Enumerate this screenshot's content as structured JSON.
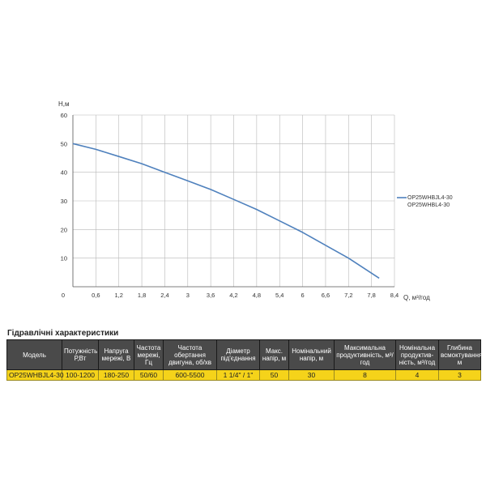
{
  "chart_data": {
    "type": "line",
    "ylabel": "H,м",
    "xlabel": "Q, м³/год",
    "xlim": [
      0,
      8.4
    ],
    "ylim": [
      0,
      60
    ],
    "x_ticks": [
      "0,6",
      "1,2",
      "1,8",
      "2,4",
      "3",
      "3,6",
      "4,2",
      "4,8",
      "5,4",
      "6",
      "6,6",
      "7,2",
      "7,8",
      "8,4"
    ],
    "x_tick_values": [
      0.6,
      1.2,
      1.8,
      2.4,
      3,
      3.6,
      4.2,
      4.8,
      5.4,
      6,
      6.6,
      7.2,
      7.8,
      8.4
    ],
    "y_ticks": [
      "10",
      "20",
      "30",
      "40",
      "50",
      "60"
    ],
    "y_tick_values": [
      10,
      20,
      30,
      40,
      50,
      60
    ],
    "origin_label": "0",
    "grid": true,
    "legend_position": "right",
    "series": [
      {
        "name": "OP25WHBJL4-30\nOP25WHBL4-30",
        "legend_lines": [
          "OP25WHBJL4-30",
          "OP25WHBL4-30"
        ],
        "color": "#4f81bd",
        "x": [
          0,
          0.6,
          1.2,
          1.8,
          2.4,
          3,
          3.6,
          4.2,
          4.8,
          5.4,
          6,
          6.6,
          7.2,
          8
        ],
        "y": [
          50,
          48,
          45.5,
          43,
          40,
          37,
          34,
          30.5,
          27,
          23,
          19,
          14.5,
          10,
          3
        ]
      }
    ]
  },
  "table": {
    "title": "Гідравлічні характеристики",
    "headers": [
      "Модель",
      "Потужність Р,Вт",
      "Напруга мережі, В",
      "Частота мережі, Гц",
      "Частота обертання двигуна, об/хв",
      "Діаметр під'єднання",
      "Макс. напір, м",
      "Номінальний напір, м",
      "Максимальна продуктивність, м³/год",
      "Номінальна продуктив-ність, м³/год",
      "Глибина всмоктування, м"
    ],
    "rows": [
      [
        "OP25WHBJL4-30",
        "100-1200",
        "180-250",
        "50/60",
        "600-5500",
        "1 1/4\" / 1\"",
        "50",
        "30",
        "8",
        "4",
        "3"
      ]
    ]
  }
}
